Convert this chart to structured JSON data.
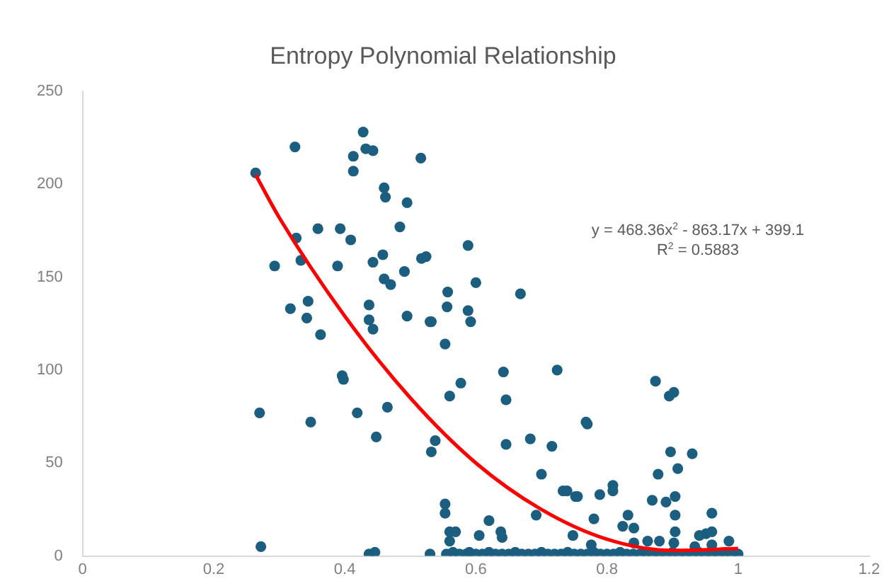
{
  "chart_data": {
    "type": "scatter",
    "title": "Entropy Polynomial Relationship",
    "xlim": [
      0,
      1.2
    ],
    "xticks": [
      0,
      0.2,
      0.4,
      0.6,
      0.8,
      1,
      1.2
    ],
    "ylim": [
      0,
      250
    ],
    "yticks": [
      0,
      50,
      100,
      150,
      200,
      250
    ],
    "grid": false,
    "legend": false,
    "marker": "circle",
    "annotations": [
      "y = 468.36x$^{2}$ - 863.17x + 399.1",
      "R$^{2}$ = 0.5883"
    ],
    "series": [
      {
        "color": "#1b5e80",
        "x": [
          0.264,
          0.27,
          0.272,
          0.293,
          0.324,
          0.317,
          0.326,
          0.333,
          0.344,
          0.342,
          0.348,
          0.359,
          0.363,
          0.389,
          0.393,
          0.396,
          0.398,
          0.409,
          0.413,
          0.413,
          0.419,
          0.428,
          0.432,
          0.443,
          0.437,
          0.437,
          0.443,
          0.443,
          0.448,
          0.437,
          0.446,
          0.46,
          0.462,
          0.458,
          0.46,
          0.465,
          0.47,
          0.484,
          0.491,
          0.495,
          0.495,
          0.517,
          0.524,
          0.516,
          0.53,
          0.532,
          0.538,
          0.553,
          0.553,
          0.553,
          0.556,
          0.557,
          0.577,
          0.56,
          0.532,
          0.588,
          0.6,
          0.588,
          0.592,
          0.642,
          0.646,
          0.668,
          0.724,
          0.768,
          0.646,
          0.683,
          0.716,
          0.7,
          0.733,
          0.739,
          0.752,
          0.692,
          0.748,
          0.62,
          0.605,
          0.638,
          0.64,
          0.56,
          0.569,
          0.56,
          0.874,
          0.902,
          0.895,
          0.77,
          0.897,
          0.93,
          0.878,
          0.908,
          0.809,
          0.809,
          0.789,
          0.755,
          0.869,
          0.89,
          0.904,
          0.78,
          0.904,
          0.96,
          0.832,
          0.824,
          0.841,
          0.904,
          0.941,
          0.951,
          0.96,
          0.986,
          0.862,
          0.88,
          0.841,
          0.902,
          0.96,
          0.776,
          0.934,
          0.53,
          0.555,
          0.565,
          0.575,
          0.585,
          0.59,
          0.6,
          0.61,
          0.62,
          0.63,
          0.64,
          0.65,
          0.66,
          0.67,
          0.68,
          0.69,
          0.7,
          0.71,
          0.72,
          0.73,
          0.74,
          0.75,
          0.76,
          0.77,
          0.78,
          0.79,
          0.8,
          0.81,
          0.82,
          0.83,
          0.84,
          0.85,
          0.86,
          0.87,
          0.88,
          0.89,
          0.9,
          0.91,
          0.92,
          0.93,
          0.94,
          0.95,
          0.96,
          0.97,
          0.98,
          0.99,
          1.0
        ],
        "values": [
          206,
          77,
          5,
          156,
          220,
          133,
          171,
          159,
          137,
          128,
          72,
          176,
          119,
          156,
          176,
          97,
          95,
          170,
          215,
          207,
          77,
          228,
          219,
          218,
          135,
          127,
          122,
          158,
          64,
          1,
          2,
          198,
          193,
          162,
          149,
          80,
          146,
          177,
          153,
          190,
          129,
          160,
          161,
          214,
          126,
          56,
          62,
          28,
          23,
          114,
          134,
          142,
          93,
          86,
          126,
          167,
          147,
          132,
          126,
          99,
          84,
          141,
          100,
          72,
          60,
          63,
          59,
          44,
          35,
          35,
          32,
          22,
          11,
          19,
          11,
          13,
          10,
          13,
          13,
          8,
          94,
          88,
          86,
          71,
          56,
          55,
          44,
          47,
          38,
          35,
          33,
          32,
          30,
          29,
          32,
          20,
          22,
          23,
          22,
          16,
          15,
          13,
          11,
          12,
          13,
          8,
          8,
          8,
          7,
          7,
          6,
          6,
          5,
          1,
          1,
          2,
          1,
          1,
          2,
          1,
          1,
          2,
          1,
          1,
          1,
          2,
          1,
          1,
          1,
          2,
          1,
          1,
          1,
          2,
          1,
          1,
          1,
          2,
          1,
          1,
          1,
          2,
          1,
          1,
          1,
          2,
          1,
          1,
          1,
          2,
          1,
          1,
          1,
          2,
          1,
          1,
          1,
          2,
          1,
          1
        ]
      },
      {
        "type": "line",
        "color": "#ff0000",
        "marker": "none",
        "x": [
          0.264,
          0.3,
          0.4,
          0.5,
          0.6,
          0.7,
          0.8,
          0.9,
          1.0
        ],
        "values": [
          205,
          182,
          129,
          85,
          50,
          25,
          9,
          3,
          4
        ]
      }
    ]
  }
}
